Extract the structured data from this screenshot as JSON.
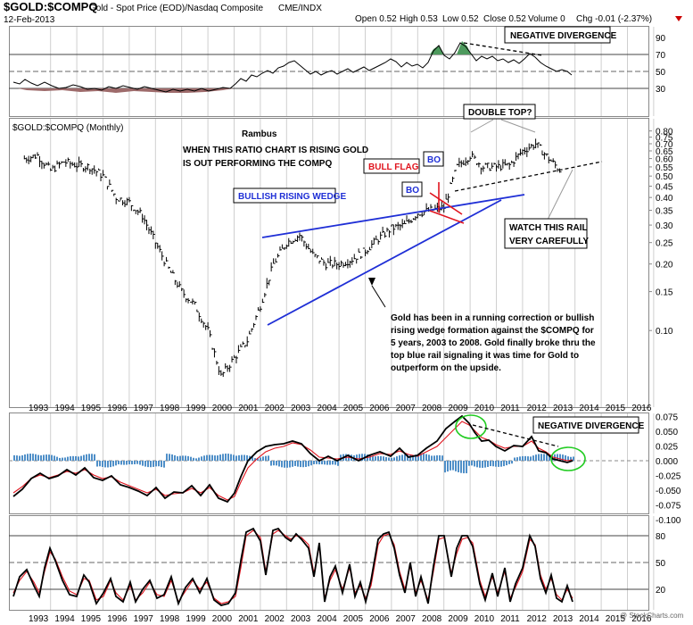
{
  "header": {
    "symbol": "$GOLD:$COMPQ",
    "description": "Gold - Spot Price (EOD)/Nasdaq Composite",
    "exchange": "CME/INDX",
    "date": "12-Feb-2013",
    "open": "Open 0.52",
    "high": "High 0.53",
    "low": "Low 0.52",
    "close": "Close 0.52",
    "volume": "Volume 0",
    "change": "Chg -0.01 (-2.37%)",
    "watermark": "@ StockCharts.com"
  },
  "colors": {
    "wedge_blue": "#1f2fd6",
    "flag_red": "#e0141e",
    "macd_hist": "#4f8fc8",
    "highlight_green": "#22cc22",
    "rsi_neg": "#9e6b6b",
    "rsi_pos": "#4d9a5d"
  },
  "chart_data": [
    {
      "type": "line",
      "name": "top-oscillator",
      "yticks": [
        "90",
        "70",
        "50",
        "30"
      ],
      "annotation": "NEGATIVE DIVERGENCE",
      "ylim": [
        20,
        100
      ]
    },
    {
      "type": "bar",
      "name": "main-price",
      "panel_label": "$GOLD:$COMPQ (Monthly)",
      "scale": "log",
      "ylim": [
        0.045,
        0.9
      ],
      "yticks": [
        "0.80",
        "0.75",
        "0.70",
        "0.65",
        "0.60",
        "0.55",
        "0.50",
        "0.45",
        "0.40",
        "0.35",
        "0.30",
        "0.25",
        "0.20",
        "0.15",
        "0.10"
      ],
      "series": [
        {
          "name": "monthly close",
          "x": [
            1992.5,
            1993,
            1993.5,
            1994,
            1994.5,
            1995,
            1995.5,
            1996,
            1996.5,
            1997,
            1997.5,
            1998,
            1998.5,
            1999,
            1999.5,
            2000,
            2000.5,
            2001,
            2001.5,
            2002,
            2002.5,
            2003,
            2003.5,
            2004,
            2004.5,
            2005,
            2005.5,
            2006,
            2006.5,
            2007,
            2007.5,
            2008,
            2008.5,
            2009,
            2009.5,
            2010,
            2010.5,
            2011,
            2011.5,
            2012,
            2012.5,
            2013
          ],
          "values": [
            0.6,
            0.62,
            0.53,
            0.58,
            0.56,
            0.55,
            0.5,
            0.4,
            0.38,
            0.33,
            0.25,
            0.19,
            0.15,
            0.13,
            0.1,
            0.062,
            0.075,
            0.09,
            0.13,
            0.2,
            0.25,
            0.27,
            0.22,
            0.2,
            0.2,
            0.21,
            0.23,
            0.26,
            0.29,
            0.3,
            0.34,
            0.35,
            0.36,
            0.55,
            0.62,
            0.55,
            0.55,
            0.56,
            0.65,
            0.7,
            0.6,
            0.52
          ]
        }
      ],
      "annotations": [
        "Rambus",
        "WHEN THIS RATIO CHART IS RISING GOLD",
        "IS OUT PERFORMING THE COMPQ",
        "BULLISH RISING WEDGE",
        "BULL FLAG",
        "BO",
        "BO",
        "DOUBLE TOP?",
        "WATCH THIS RAIL",
        "VERY CAREFULLY",
        "Gold has been in a running correction or bullish",
        "rising wedge formation against the $COMPQ for",
        "5 years, 2003 to 2008.  Gold finally broke thru the",
        "top blue rail signaling it was time for Gold to",
        "outperform on the upside."
      ]
    },
    {
      "type": "line",
      "name": "macd",
      "yticks": [
        "0.075",
        "0.050",
        "0.025",
        "0.000",
        "-0.025",
        "-0.050",
        "-0.075",
        "-0.100"
      ],
      "ylim": [
        -0.105,
        0.095
      ],
      "annotation": "NEGATIVE DIVERGENCE"
    },
    {
      "type": "line",
      "name": "stochastic",
      "yticks": [
        "80",
        "50",
        "20"
      ],
      "ylim": [
        0,
        100
      ]
    }
  ],
  "xaxis": {
    "years": [
      "1993",
      "1994",
      "1995",
      "1996",
      "1997",
      "1998",
      "1999",
      "2000",
      "2001",
      "2002",
      "2003",
      "2004",
      "2005",
      "2006",
      "2007",
      "2008",
      "2009",
      "2010",
      "2011",
      "2012",
      "2013",
      "2014",
      "2015",
      "2016"
    ]
  }
}
